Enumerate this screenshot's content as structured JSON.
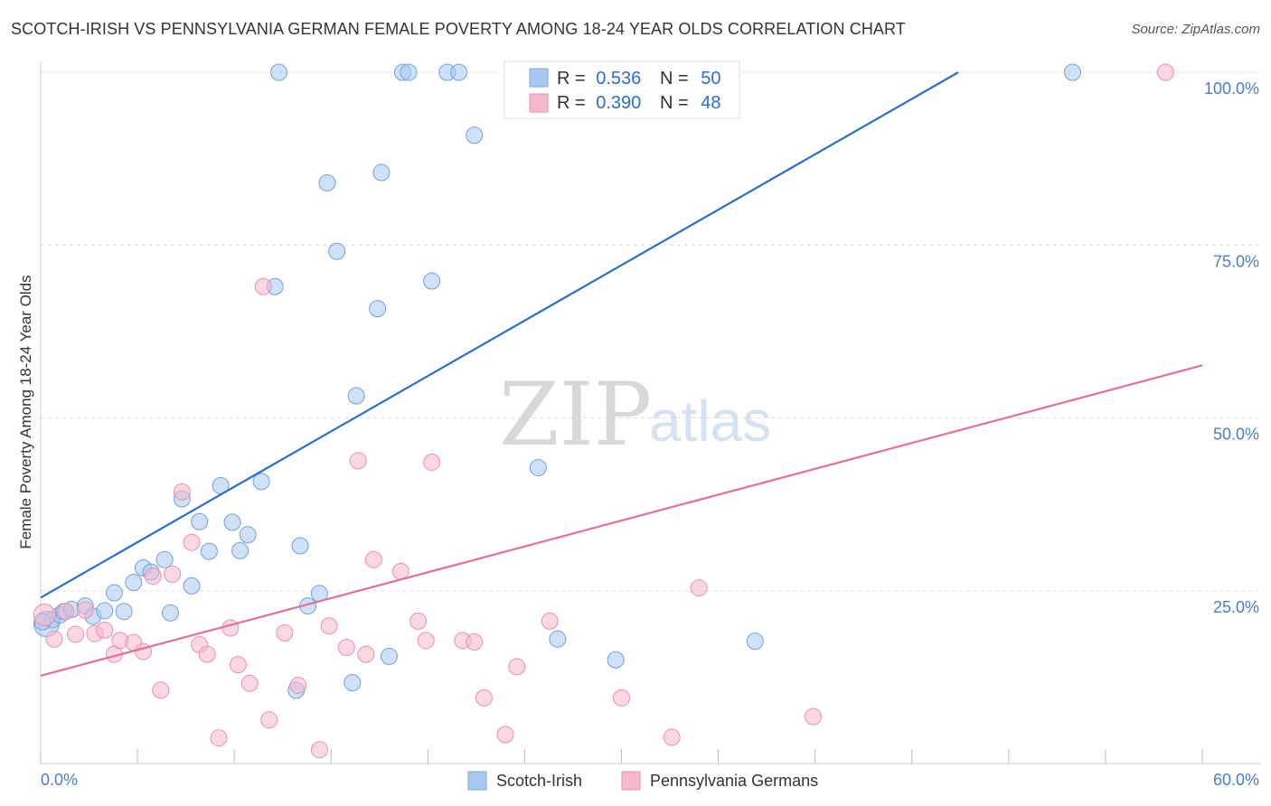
{
  "header": {
    "title": "SCOTCH-IRISH VS PENNSYLVANIA GERMAN FEMALE POVERTY AMONG 18-24 YEAR OLDS CORRELATION CHART",
    "source": "Source: ZipAtlas.com"
  },
  "watermark": {
    "zip": "ZIP",
    "atlas": "atlas"
  },
  "stats": [
    {
      "r_label": "R =",
      "r_value": "0.536",
      "n_label": "N =",
      "n_value": "50"
    },
    {
      "r_label": "R =",
      "r_value": "0.390",
      "n_label": "N =",
      "n_value": "48"
    }
  ],
  "colors": {
    "series1_fill": "#a8c8f0",
    "series1_line": "#2a6fca",
    "series2_fill": "#f6b8cb",
    "series2_line": "#e0709a",
    "tick_text": "#4a7cc7",
    "grid": "#dddddd"
  },
  "chart_data": {
    "type": "scatter",
    "title": "SCOTCH-IRISH VS PENNSYLVANIA GERMAN FEMALE POVERTY AMONG 18-24 YEAR OLDS CORRELATION CHART",
    "xlabel": "",
    "ylabel": "Female Poverty Among 18-24 Year Olds",
    "xlim": [
      0,
      60
    ],
    "ylim": [
      0,
      102
    ],
    "x_tick_labels": [
      "0.0%",
      "60.0%"
    ],
    "y_ticks": [
      25,
      50,
      75,
      100
    ],
    "y_tick_labels": [
      "25.0%",
      "50.0%",
      "75.0%",
      "100.0%"
    ],
    "grid": true,
    "legend_position": "bottom",
    "series": [
      {
        "name": "Scotch-Irish",
        "color": "#a8c8f0",
        "r": 0.536,
        "n": 50,
        "trend": {
          "x": [
            0,
            47.4
          ],
          "y": [
            24.0,
            100.0
          ]
        },
        "points": [
          [
            0.3,
            20.2
          ],
          [
            0.6,
            20.8
          ],
          [
            1.0,
            21.5
          ],
          [
            1.2,
            22.0
          ],
          [
            1.6,
            22.3
          ],
          [
            2.3,
            22.8
          ],
          [
            2.7,
            21.3
          ],
          [
            3.3,
            22.1
          ],
          [
            3.8,
            24.7
          ],
          [
            4.3,
            22.0
          ],
          [
            4.8,
            26.2
          ],
          [
            5.3,
            28.3
          ],
          [
            5.7,
            27.7
          ],
          [
            6.4,
            29.5
          ],
          [
            6.7,
            21.8
          ],
          [
            7.3,
            38.3
          ],
          [
            7.8,
            25.7
          ],
          [
            8.2,
            35.0
          ],
          [
            8.7,
            30.7
          ],
          [
            9.3,
            40.2
          ],
          [
            9.9,
            34.9
          ],
          [
            10.3,
            30.8
          ],
          [
            10.7,
            33.1
          ],
          [
            11.4,
            40.8
          ],
          [
            12.1,
            69.0
          ],
          [
            12.3,
            100.0
          ],
          [
            13.2,
            10.6
          ],
          [
            13.4,
            31.5
          ],
          [
            13.8,
            22.8
          ],
          [
            14.4,
            24.6
          ],
          [
            14.8,
            84.0
          ],
          [
            15.3,
            74.1
          ],
          [
            16.1,
            11.7
          ],
          [
            16.3,
            53.2
          ],
          [
            17.4,
            65.8
          ],
          [
            17.6,
            85.5
          ],
          [
            18.0,
            15.5
          ],
          [
            18.7,
            100.0
          ],
          [
            19.0,
            100.0
          ],
          [
            20.2,
            69.8
          ],
          [
            21.0,
            100.0
          ],
          [
            21.6,
            100.0
          ],
          [
            22.4,
            90.9
          ],
          [
            25.7,
            42.8
          ],
          [
            26.3,
            100.0
          ],
          [
            26.7,
            18.0
          ],
          [
            29.7,
            15.0
          ],
          [
            36.9,
            17.7
          ],
          [
            53.3,
            100.0
          ],
          [
            0.1,
            20.5
          ]
        ]
      },
      {
        "name": "Pennsylvania Germans",
        "color": "#f6b8cb",
        "r": 0.39,
        "n": 48,
        "trend": {
          "x": [
            0,
            60
          ],
          "y": [
            12.7,
            57.6
          ]
        },
        "points": [
          [
            0.2,
            21.5
          ],
          [
            0.7,
            18.0
          ],
          [
            1.3,
            22.0
          ],
          [
            1.8,
            18.7
          ],
          [
            2.3,
            22.2
          ],
          [
            2.8,
            18.8
          ],
          [
            3.3,
            19.3
          ],
          [
            3.8,
            15.8
          ],
          [
            4.1,
            17.8
          ],
          [
            4.8,
            17.5
          ],
          [
            5.3,
            16.2
          ],
          [
            5.8,
            27.1
          ],
          [
            6.2,
            10.6
          ],
          [
            6.8,
            27.4
          ],
          [
            7.3,
            39.3
          ],
          [
            7.8,
            32.0
          ],
          [
            8.2,
            17.2
          ],
          [
            8.6,
            15.8
          ],
          [
            9.2,
            3.7
          ],
          [
            9.8,
            19.6
          ],
          [
            10.2,
            14.3
          ],
          [
            10.8,
            11.6
          ],
          [
            11.5,
            69.0
          ],
          [
            11.8,
            6.3
          ],
          [
            12.6,
            18.9
          ],
          [
            13.3,
            11.3
          ],
          [
            14.4,
            2.0
          ],
          [
            14.9,
            19.9
          ],
          [
            15.8,
            16.8
          ],
          [
            16.4,
            43.8
          ],
          [
            16.8,
            15.8
          ],
          [
            17.2,
            29.5
          ],
          [
            18.6,
            27.8
          ],
          [
            19.5,
            20.6
          ],
          [
            19.9,
            17.8
          ],
          [
            20.2,
            43.6
          ],
          [
            21.8,
            17.8
          ],
          [
            22.4,
            17.6
          ],
          [
            22.9,
            9.5
          ],
          [
            24.0,
            4.2
          ],
          [
            24.6,
            14.0
          ],
          [
            26.3,
            20.6
          ],
          [
            28.4,
            100.0
          ],
          [
            30.0,
            9.5
          ],
          [
            32.6,
            3.8
          ],
          [
            34.0,
            25.4
          ],
          [
            39.9,
            6.8
          ],
          [
            58.1,
            100.0
          ]
        ]
      }
    ]
  }
}
